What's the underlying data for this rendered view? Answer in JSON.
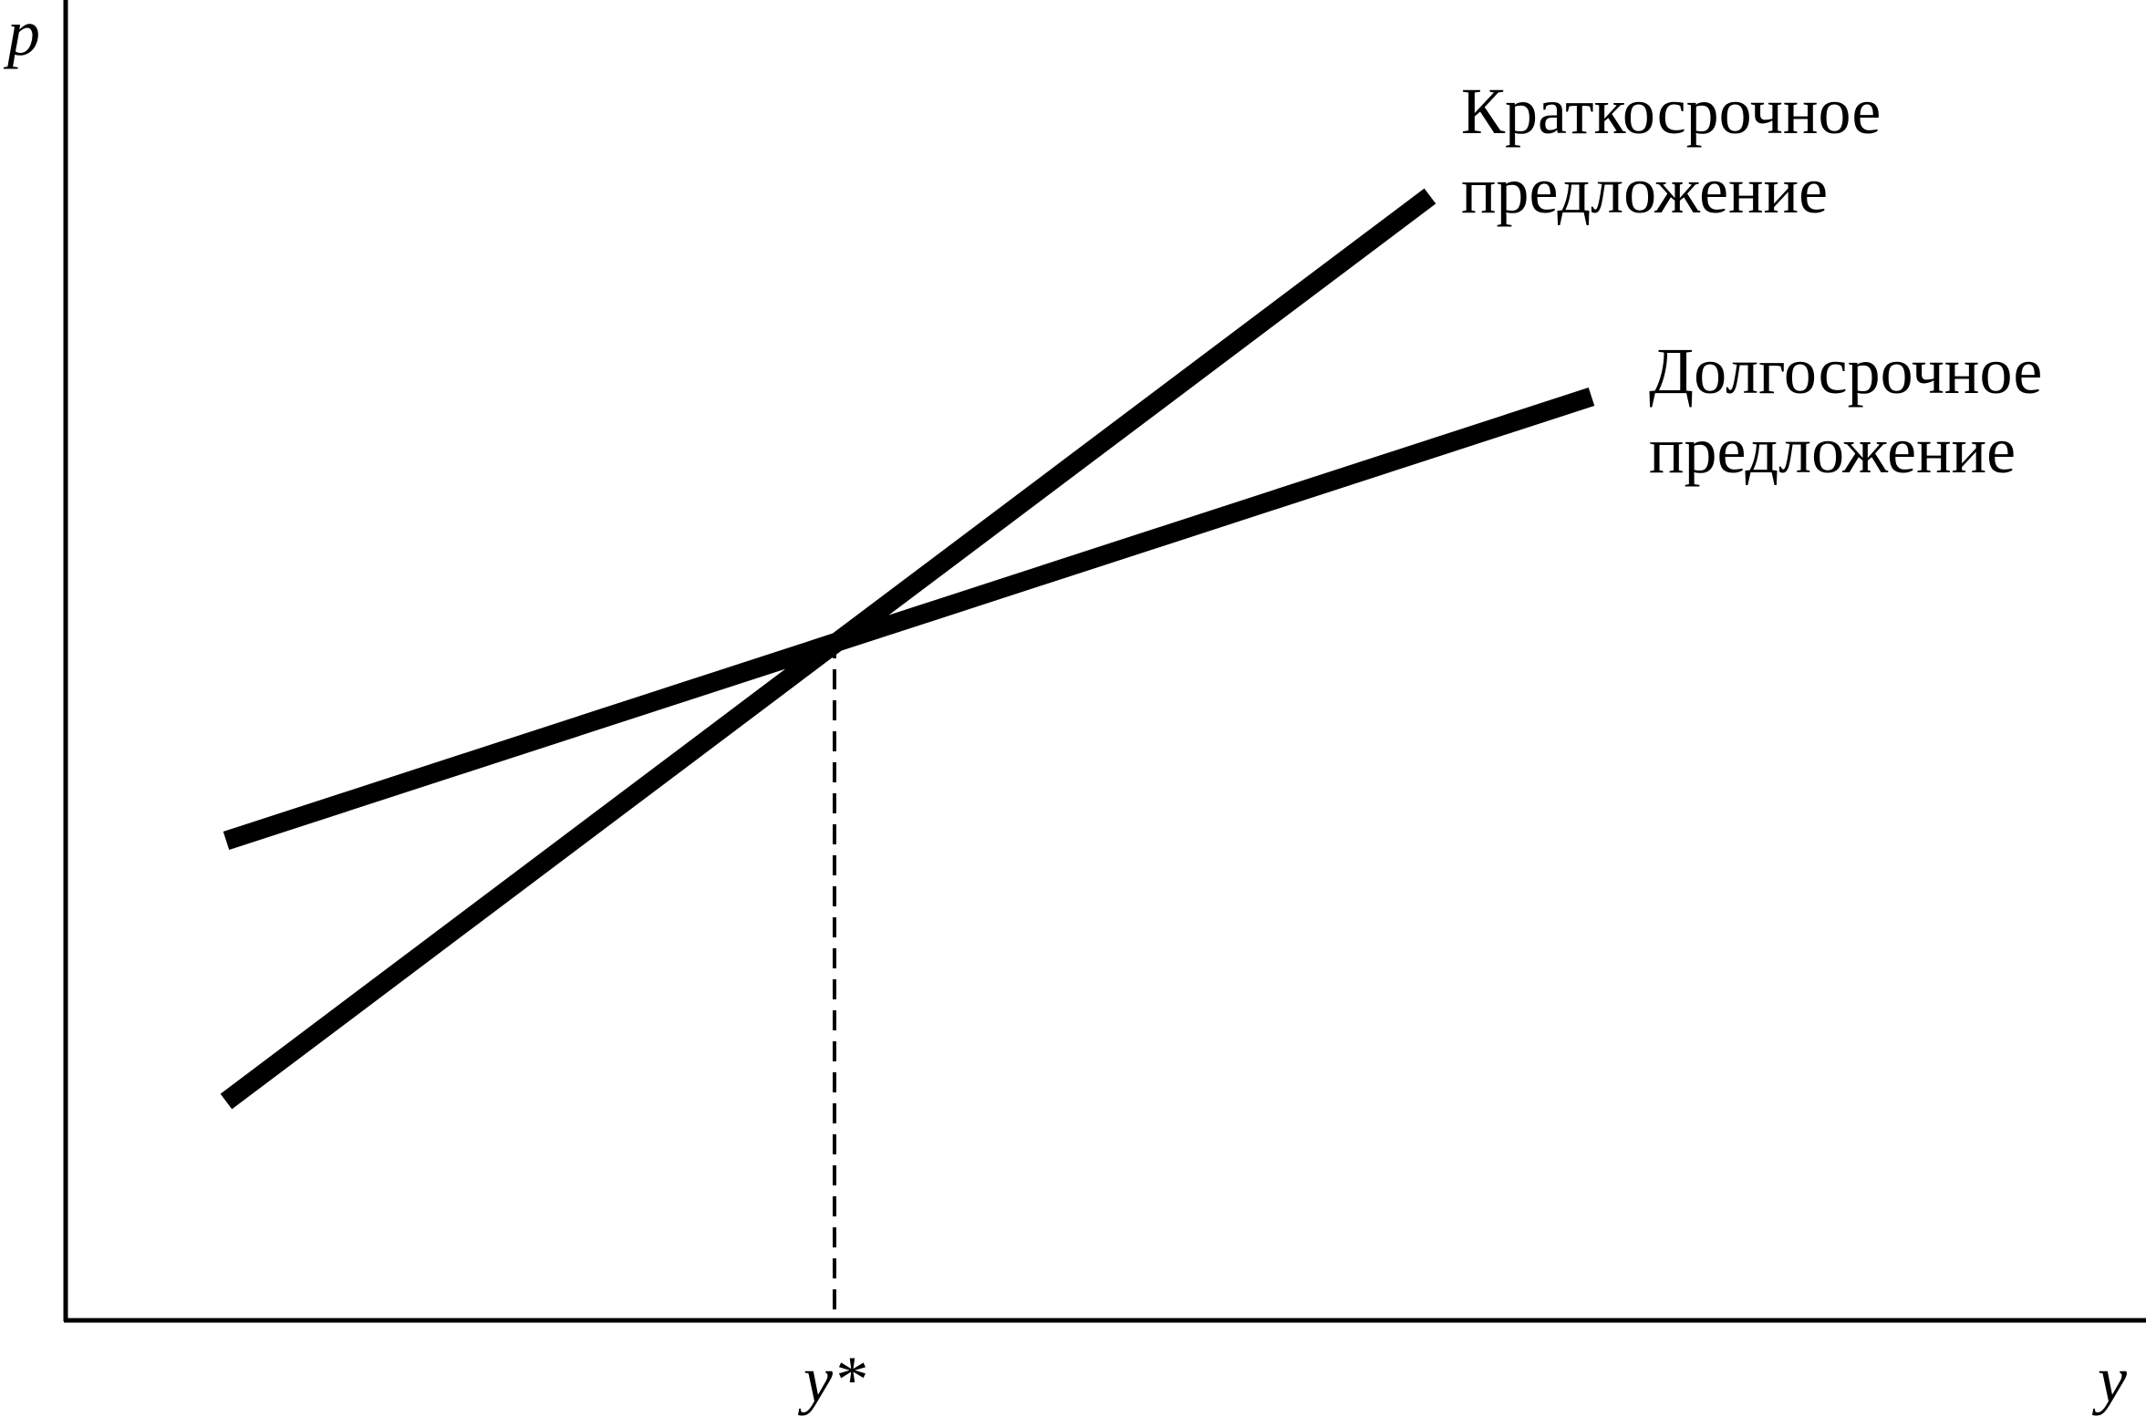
{
  "axes": {
    "y_label": "p",
    "x_label": "y"
  },
  "marker": "y*",
  "curves": [
    {
      "label_lines": [
        "Краткосрочное",
        "предложение"
      ]
    },
    {
      "label_lines": [
        "Долгосрочное",
        "предложение"
      ]
    }
  ]
}
